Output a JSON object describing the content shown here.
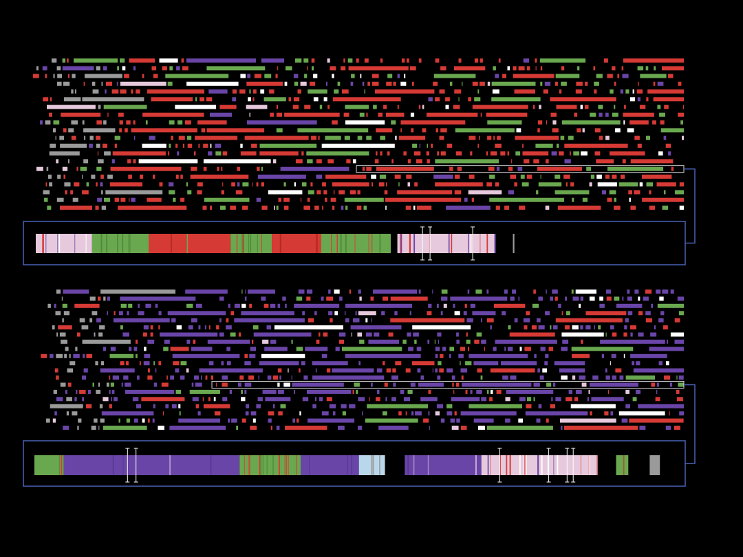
{
  "figure": {
    "kind": "haplotype-segment-plot",
    "background": "#000000",
    "palette": {
      "red": "#d63a35",
      "green": "#6aa84f",
      "purple": "#6a45a8",
      "pink": "#e6c9dc",
      "lightblue": "#b9d7ea",
      "white": "#ffffff",
      "grey": "#9a9a9a"
    },
    "connector_color": "#4a62b8",
    "panels": [
      {
        "id": "top",
        "dominant_colors": [
          "red",
          "green",
          "purple",
          "pink"
        ],
        "track_count": 20,
        "highlighted_track": 14,
        "zoom_segments": [
          {
            "start": 0.0,
            "end": 0.112,
            "color": "pink"
          },
          {
            "start": 0.112,
            "end": 0.225,
            "color": "green"
          },
          {
            "start": 0.225,
            "end": 0.388,
            "color": "red"
          },
          {
            "start": 0.388,
            "end": 0.47,
            "color": "green"
          },
          {
            "start": 0.47,
            "end": 0.57,
            "color": "red"
          },
          {
            "start": 0.57,
            "end": 0.707,
            "color": "green"
          },
          {
            "start": 0.72,
            "end": 0.915,
            "color": "pink"
          },
          {
            "start": 0.95,
            "end": 0.953,
            "color": "grey"
          }
        ],
        "zoom_markers": [
          0.77,
          0.785,
          0.87
        ]
      },
      {
        "id": "bottom",
        "dominant_colors": [
          "purple",
          "red",
          "green",
          "pink"
        ],
        "track_count": 20,
        "highlighted_track": 13,
        "zoom_segments": [
          {
            "start": 0.0,
            "end": 0.048,
            "color": "green"
          },
          {
            "start": 0.048,
            "end": 0.335,
            "color": "purple"
          },
          {
            "start": 0.335,
            "end": 0.435,
            "color": "green"
          },
          {
            "start": 0.435,
            "end": 0.53,
            "color": "purple"
          },
          {
            "start": 0.53,
            "end": 0.572,
            "color": "lightblue"
          },
          {
            "start": 0.605,
            "end": 0.73,
            "color": "purple"
          },
          {
            "start": 0.73,
            "end": 0.92,
            "color": "pink"
          },
          {
            "start": 0.95,
            "end": 0.97,
            "color": "green"
          },
          {
            "start": 1.005,
            "end": 1.02,
            "color": "grey"
          }
        ],
        "zoom_markers": [
          0.152,
          0.166,
          0.76,
          0.84,
          0.87,
          0.88
        ]
      }
    ]
  }
}
